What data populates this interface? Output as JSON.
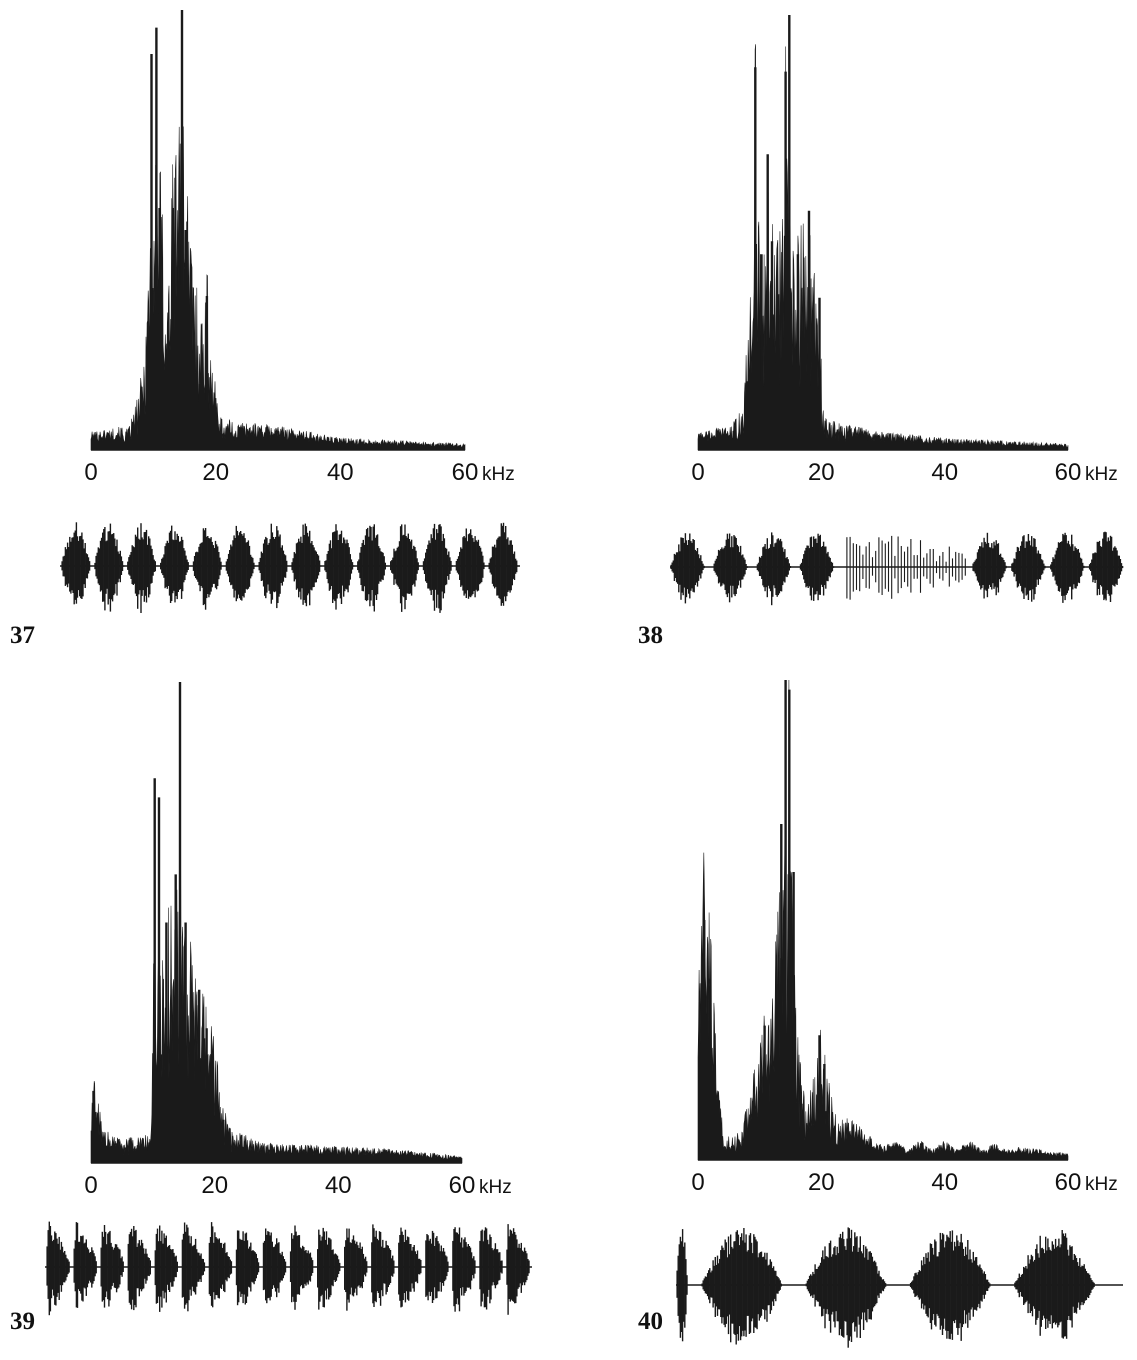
{
  "chart_data": [
    {
      "type": "area",
      "figure_number": "37",
      "x_ticks": [
        "0",
        "20",
        "40",
        "60"
      ],
      "x_unit": "kHz",
      "xlim": [
        0,
        60
      ],
      "ylim": [
        0,
        1
      ],
      "peaks": [
        {
          "f": 8.6,
          "a": 0.06,
          "w": 0.3
        },
        {
          "f": 9.7,
          "a": 0.9,
          "w": 0.12
        },
        {
          "f": 10.5,
          "a": 0.96,
          "w": 0.12
        },
        {
          "f": 11.0,
          "a": 0.55,
          "w": 0.3
        },
        {
          "f": 13.2,
          "a": 0.55,
          "w": 0.6
        },
        {
          "f": 14.6,
          "a": 1.0,
          "w": 0.12
        },
        {
          "f": 15.2,
          "a": 0.5,
          "w": 0.4
        },
        {
          "f": 17.5,
          "a": 0.15,
          "w": 0.4
        },
        {
          "f": 18.6,
          "a": 0.35,
          "w": 0.2
        },
        {
          "f": 19.5,
          "a": 0.1,
          "w": 0.6
        },
        {
          "f": 22.5,
          "a": 0.04,
          "w": 1.0
        },
        {
          "f": 31.0,
          "a": 0.03,
          "w": 1.2
        }
      ],
      "envelope": [
        [
          0,
          0.03
        ],
        [
          6,
          0.04
        ],
        [
          7.6,
          0.1
        ],
        [
          8.5,
          0.18
        ],
        [
          9.5,
          0.45
        ],
        [
          11,
          0.55
        ],
        [
          12.2,
          0.3
        ],
        [
          13.4,
          0.6
        ],
        [
          14.5,
          0.7
        ],
        [
          16,
          0.4
        ],
        [
          17.5,
          0.26
        ],
        [
          18.5,
          0.3
        ],
        [
          19.8,
          0.13
        ],
        [
          21,
          0.06
        ],
        [
          25,
          0.045
        ],
        [
          30,
          0.04
        ],
        [
          40,
          0.02
        ],
        [
          50,
          0.015
        ],
        [
          60,
          0.01
        ]
      ],
      "oscillogram": {
        "bursts": 14,
        "continuous": true
      }
    },
    {
      "type": "area",
      "figure_number": "38",
      "x_ticks": [
        "0",
        "20",
        "40",
        "60"
      ],
      "x_unit": "kHz",
      "xlim": [
        0,
        60
      ],
      "ylim": [
        0,
        1
      ],
      "peaks": [
        {
          "f": 9.3,
          "a": 0.88,
          "w": 0.12
        },
        {
          "f": 10.3,
          "a": 0.45,
          "w": 0.2
        },
        {
          "f": 11.3,
          "a": 0.68,
          "w": 0.15
        },
        {
          "f": 12.0,
          "a": 0.48,
          "w": 0.3
        },
        {
          "f": 14.2,
          "a": 0.87,
          "w": 0.12
        },
        {
          "f": 14.8,
          "a": 1.0,
          "w": 0.12
        },
        {
          "f": 16.2,
          "a": 0.45,
          "w": 0.2
        },
        {
          "f": 18.0,
          "a": 0.55,
          "w": 0.15
        },
        {
          "f": 19.7,
          "a": 0.35,
          "w": 0.25
        }
      ],
      "envelope": [
        [
          0,
          0.03
        ],
        [
          5,
          0.04
        ],
        [
          7.4,
          0.08
        ],
        [
          8.3,
          0.3
        ],
        [
          9.4,
          0.5
        ],
        [
          11.5,
          0.3
        ],
        [
          12.7,
          0.4
        ],
        [
          13.6,
          0.45
        ],
        [
          14.5,
          0.55
        ],
        [
          15.8,
          0.3
        ],
        [
          16.9,
          0.45
        ],
        [
          18.5,
          0.4
        ],
        [
          20.4,
          0.06
        ],
        [
          25,
          0.04
        ],
        [
          30,
          0.03
        ],
        [
          40,
          0.02
        ],
        [
          50,
          0.015
        ],
        [
          60,
          0.01
        ]
      ],
      "oscillogram": {
        "bursts": 4,
        "continuous": false
      }
    },
    {
      "type": "area",
      "figure_number": "39",
      "x_ticks": [
        "0",
        "20",
        "40",
        "60"
      ],
      "x_unit": "kHz",
      "xlim": [
        0,
        60
      ],
      "ylim": [
        0,
        1
      ],
      "peaks": [
        {
          "f": 0.4,
          "a": 0.15,
          "w": 0.3
        },
        {
          "f": 10.3,
          "a": 0.8,
          "w": 0.15
        },
        {
          "f": 11.0,
          "a": 0.76,
          "w": 0.15
        },
        {
          "f": 12.2,
          "a": 0.5,
          "w": 0.2
        },
        {
          "f": 13.7,
          "a": 0.6,
          "w": 0.2
        },
        {
          "f": 14.4,
          "a": 1.0,
          "w": 0.12
        },
        {
          "f": 15.3,
          "a": 0.5,
          "w": 0.2
        },
        {
          "f": 17.5,
          "a": 0.36,
          "w": 0.2
        },
        {
          "f": 18.7,
          "a": 0.28,
          "w": 0.25
        },
        {
          "f": 19.5,
          "a": 0.2,
          "w": 0.25
        },
        {
          "f": 21.4,
          "a": 0.09,
          "w": 0.5
        }
      ],
      "envelope": [
        [
          0,
          0.08
        ],
        [
          1,
          0.1
        ],
        [
          2,
          0.05
        ],
        [
          5,
          0.04
        ],
        [
          9.5,
          0.05
        ],
        [
          10,
          0.2
        ],
        [
          11.5,
          0.4
        ],
        [
          13,
          0.45
        ],
        [
          14.5,
          0.55
        ],
        [
          16,
          0.4
        ],
        [
          17.5,
          0.3
        ],
        [
          19.5,
          0.25
        ],
        [
          21.5,
          0.1
        ],
        [
          23,
          0.05
        ],
        [
          28,
          0.03
        ],
        [
          40,
          0.025
        ],
        [
          50,
          0.02
        ],
        [
          60,
          0.01
        ]
      ],
      "oscillogram": {
        "bursts": 18,
        "continuous": true
      }
    },
    {
      "type": "area",
      "figure_number": "40",
      "x_ticks": [
        "0",
        "20",
        "40",
        "60"
      ],
      "x_unit": "kHz",
      "xlim": [
        0,
        60
      ],
      "ylim": [
        0,
        1
      ],
      "peaks": [
        {
          "f": 1.0,
          "a": 0.5,
          "w": 0.2
        },
        {
          "f": 10.8,
          "a": 0.28,
          "w": 0.2
        },
        {
          "f": 13.5,
          "a": 0.7,
          "w": 0.25
        },
        {
          "f": 14.2,
          "a": 1.0,
          "w": 0.12
        },
        {
          "f": 14.8,
          "a": 0.98,
          "w": 0.12
        },
        {
          "f": 15.5,
          "a": 0.6,
          "w": 0.2
        },
        {
          "f": 19.7,
          "a": 0.26,
          "w": 0.4
        },
        {
          "f": 20.5,
          "a": 0.2,
          "w": 0.3
        }
      ],
      "envelope": [
        [
          0,
          0.25
        ],
        [
          0.8,
          0.42
        ],
        [
          1.8,
          0.4
        ],
        [
          2.8,
          0.2
        ],
        [
          4.2,
          0.02
        ],
        [
          5,
          0.04
        ],
        [
          7,
          0.05
        ],
        [
          9,
          0.15
        ],
        [
          11,
          0.25
        ],
        [
          12.8,
          0.4
        ],
        [
          14,
          0.6
        ],
        [
          15,
          0.6
        ],
        [
          16.3,
          0.2
        ],
        [
          17.5,
          0.08
        ],
        [
          18.8,
          0.15
        ],
        [
          19.8,
          0.2
        ],
        [
          21.5,
          0.12
        ],
        [
          23,
          0.07
        ],
        [
          25,
          0.06
        ],
        [
          28,
          0.04
        ],
        [
          30,
          0.02
        ],
        [
          32,
          0.03
        ],
        [
          34,
          0.015
        ],
        [
          36,
          0.03
        ],
        [
          38,
          0.015
        ],
        [
          40,
          0.03
        ],
        [
          42,
          0.015
        ],
        [
          44,
          0.03
        ],
        [
          46,
          0.015
        ],
        [
          48,
          0.025
        ],
        [
          50,
          0.015
        ],
        [
          52,
          0.02
        ],
        [
          56,
          0.015
        ],
        [
          60,
          0.01
        ]
      ],
      "oscillogram": {
        "bursts": 5,
        "continuous": false
      }
    }
  ]
}
